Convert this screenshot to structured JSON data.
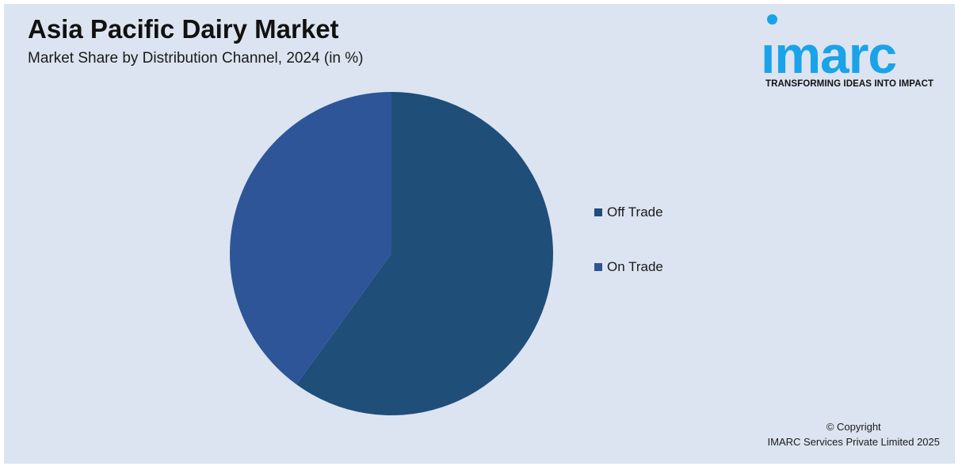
{
  "title": "Asia Pacific Dairy Market",
  "subtitle": "Market Share by Distribution Channel, 2024 (in %)",
  "logo": {
    "word": "ımarc",
    "tagline": "TRANSFORMING IDEAS INTO IMPACT",
    "color": "#1aa3e8"
  },
  "copyright": {
    "line1": "© Copyright",
    "line2": "IMARC Services Private Limited 2025"
  },
  "chart_data": {
    "type": "pie",
    "title": "Asia Pacific Dairy Market",
    "subtitle": "Market Share by Distribution Channel, 2024 (in %)",
    "slices": [
      {
        "label": "Off Trade",
        "value": 60,
        "color": "#1f4e79"
      },
      {
        "label": "On Trade",
        "value": 40,
        "color": "#2e5597"
      }
    ],
    "start_angle": "12 o'clock",
    "direction": "clockwise",
    "legend_position": "right",
    "background": "#dce4f1"
  }
}
